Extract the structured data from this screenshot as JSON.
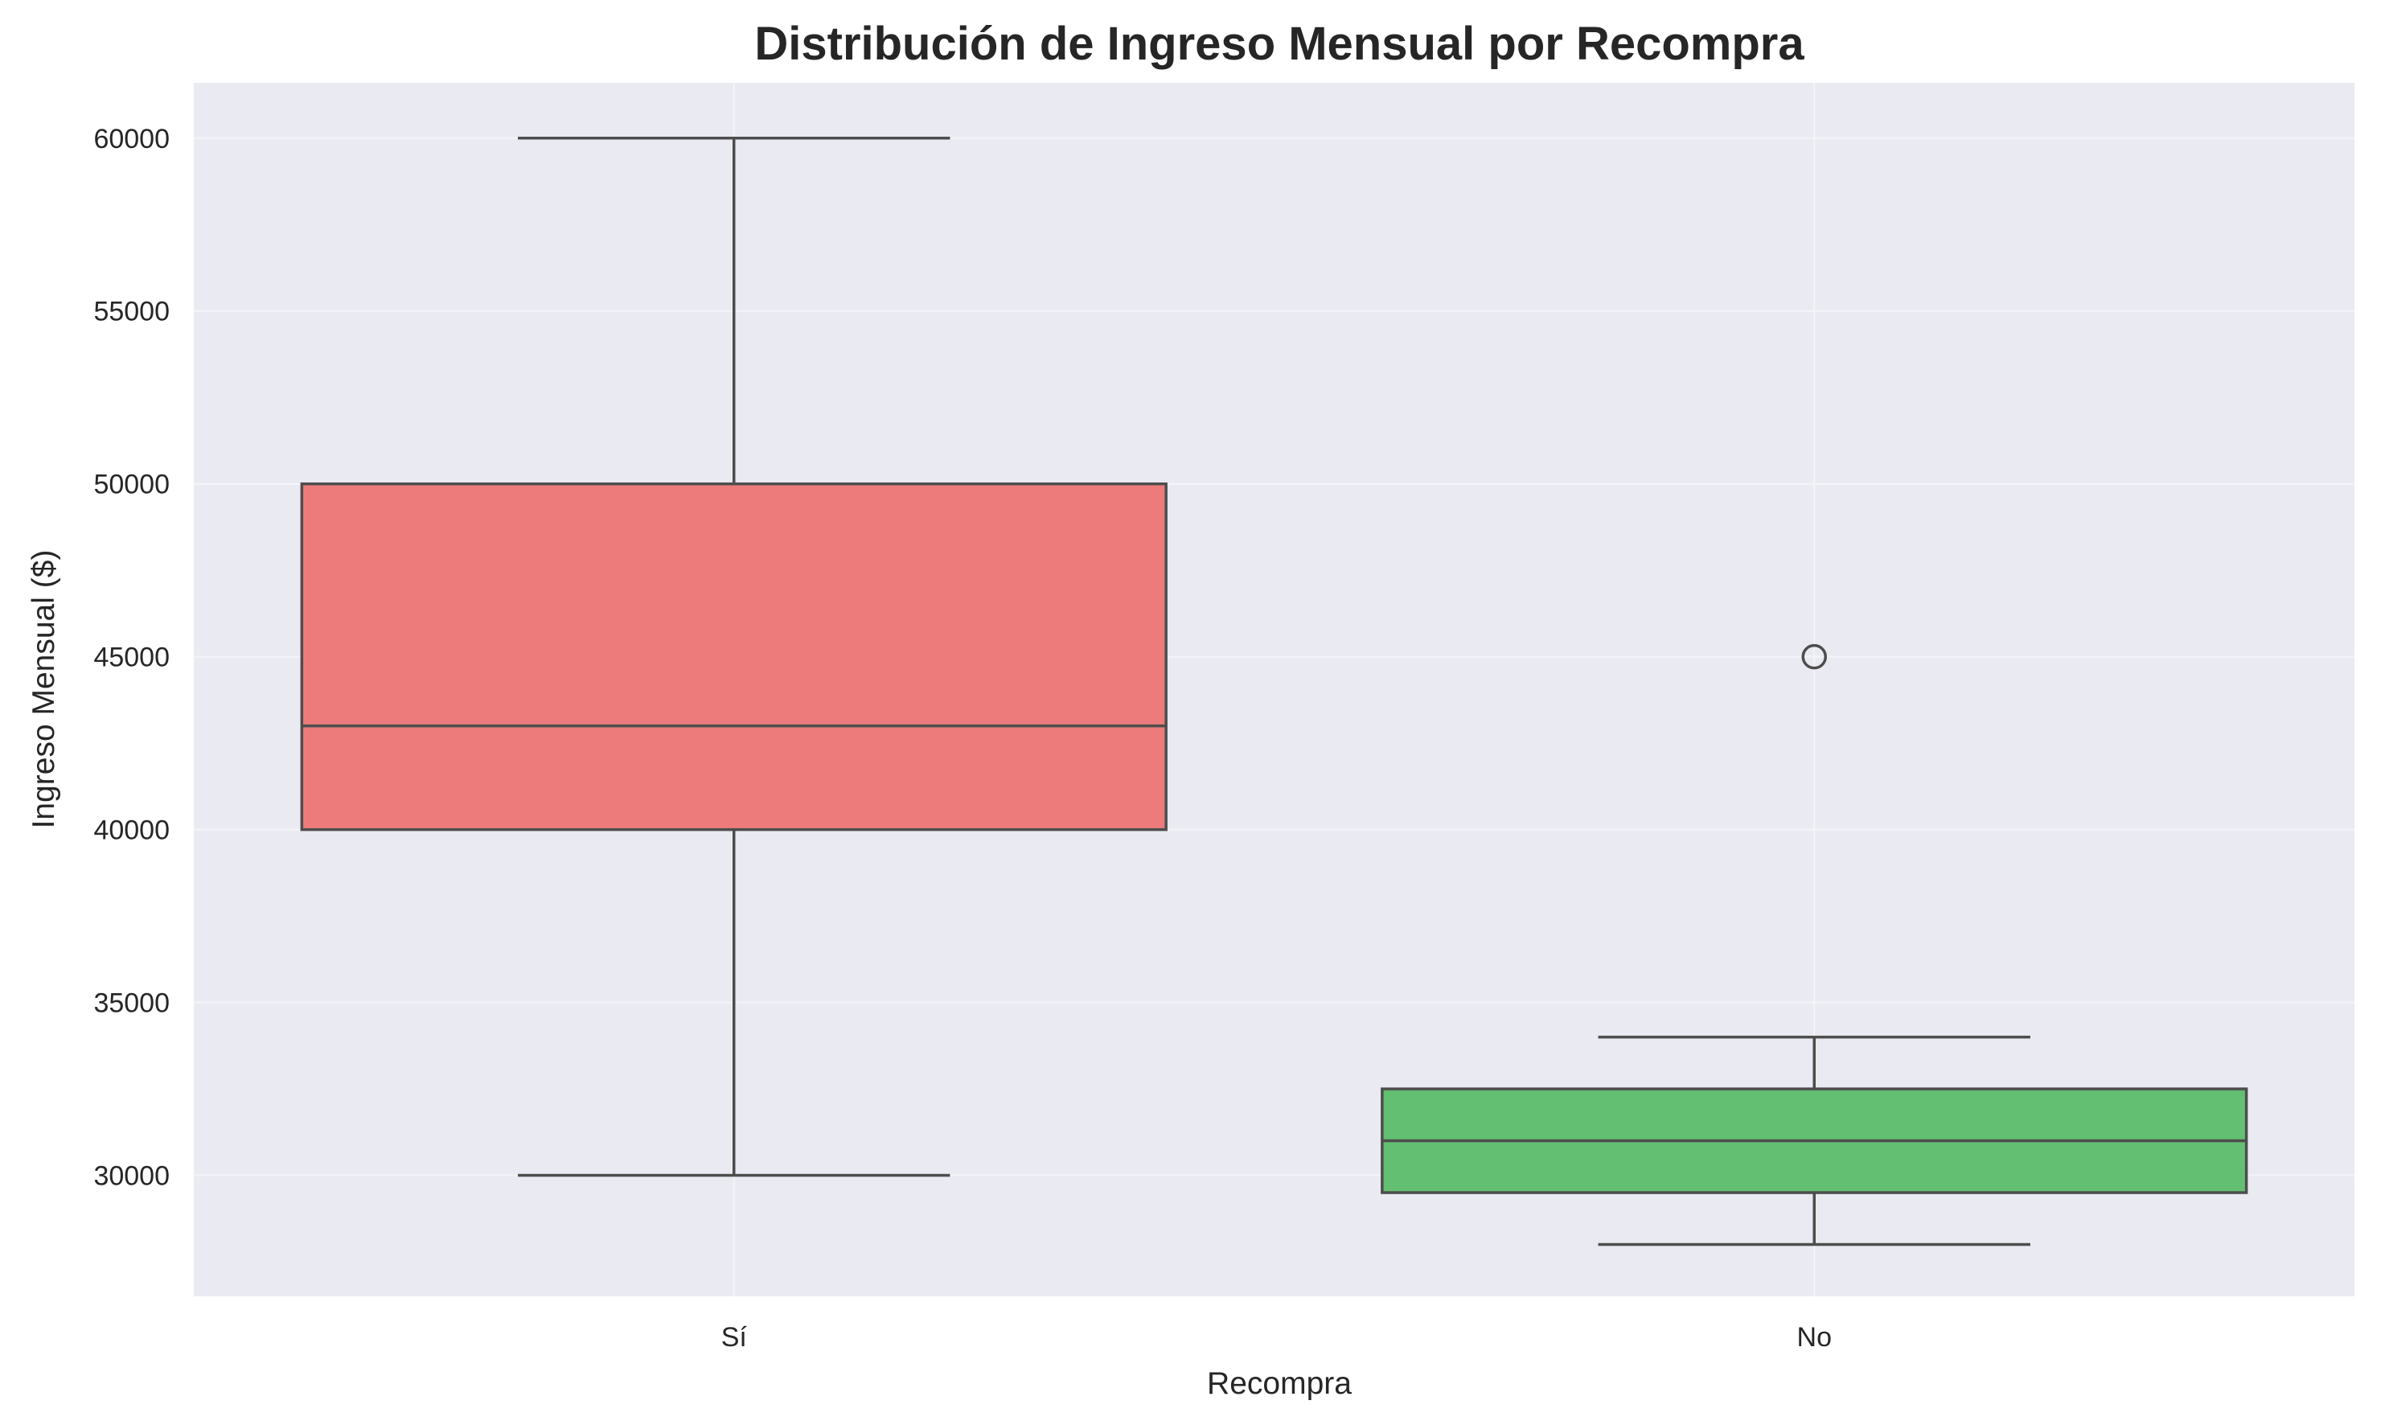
{
  "chart_data": {
    "type": "box",
    "title": "Distribución de Ingreso Mensual por Recompra",
    "xlabel": "Recompra",
    "ylabel": "Ingreso Mensual ($)",
    "categories": [
      "Sí",
      "No"
    ],
    "boxes": [
      {
        "category": "Sí",
        "whisker_low": 30000,
        "q1": 40000,
        "median": 43000,
        "q3": 50000,
        "whisker_high": 60000,
        "outliers": [],
        "color": "#ed7b7b"
      },
      {
        "category": "No",
        "whisker_low": 28000,
        "q1": 29500,
        "median": 31000,
        "q3": 32500,
        "whisker_high": 34000,
        "outliers": [
          45000
        ],
        "color": "#63bf71"
      }
    ],
    "ylim": [
      26500,
      61600
    ],
    "yticks": [
      30000,
      35000,
      40000,
      45000,
      50000,
      55000,
      60000
    ],
    "grid": true,
    "colors": {
      "plot_background": "#eaeaf2",
      "grid": "#f4f4f8",
      "box_edge": "#4d4d4d",
      "text": "#262626"
    }
  }
}
